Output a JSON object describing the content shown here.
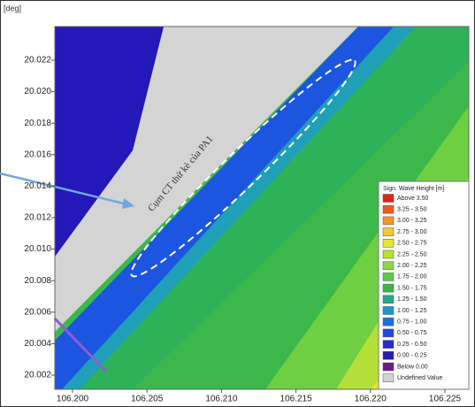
{
  "axes": {
    "y_unit": "[deg]",
    "y_ticks": [
      "20.022",
      "20.020",
      "20.018",
      "20.016",
      "20.014",
      "20.012",
      "20.010",
      "20.008",
      "20.006",
      "20.004",
      "20.002"
    ],
    "x_ticks": [
      "106.200",
      "106.205",
      "106.210",
      "106.215",
      "106.220",
      "106.225"
    ]
  },
  "annotation": "Cụm CT thử kè của PA1",
  "legend": {
    "title": "Sign. Wave Height [m]",
    "items": [
      {
        "label": "Above 3.50",
        "color": "#e0231c"
      },
      {
        "label": "3.25 - 3.50",
        "color": "#ee5a1e"
      },
      {
        "label": "3.00 - 3.25",
        "color": "#f5932a"
      },
      {
        "label": "2.75 - 3.00",
        "color": "#f7c531"
      },
      {
        "label": "2.50 - 2.75",
        "color": "#e2e82e"
      },
      {
        "label": "2.25 - 2.50",
        "color": "#b9e23a"
      },
      {
        "label": "2.00 - 2.25",
        "color": "#8bd643"
      },
      {
        "label": "1.75 - 2.00",
        "color": "#5ccb45"
      },
      {
        "label": "1.50 - 1.75",
        "color": "#35b94a"
      },
      {
        "label": "1.25 - 1.50",
        "color": "#25a98a"
      },
      {
        "label": "1.00 - 1.25",
        "color": "#1f96c4"
      },
      {
        "label": "0.75 - 1.00",
        "color": "#1c6fe0"
      },
      {
        "label": "0.50 - 0.75",
        "color": "#1f4ae3"
      },
      {
        "label": "0.25 - 0.50",
        "color": "#2a2ad2"
      },
      {
        "label": "0.00 - 0.25",
        "color": "#2a1ab0"
      },
      {
        "label": "Below 0.00",
        "color": "#6a1a8a"
      },
      {
        "label": "Undefined Value",
        "color": "#d4d4d4"
      }
    ]
  }
}
